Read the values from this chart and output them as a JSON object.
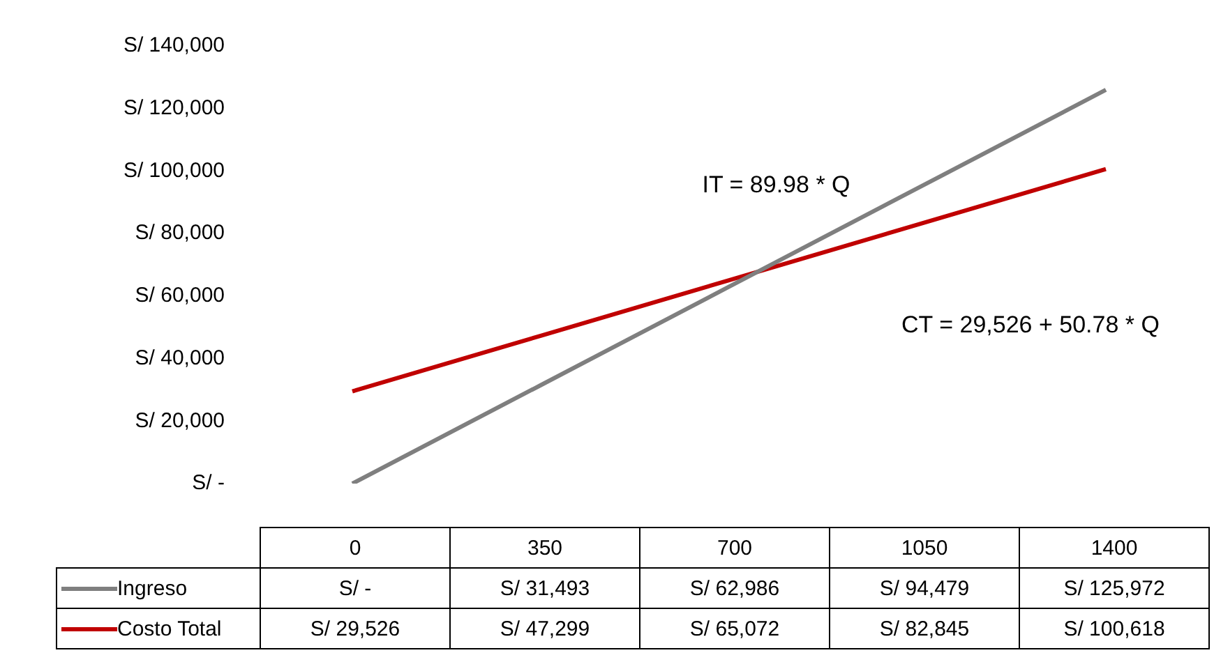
{
  "chart_data": {
    "type": "line",
    "categories": [
      "0",
      "350",
      "700",
      "1050",
      "1400"
    ],
    "series": [
      {
        "name": "Ingreso",
        "color": "#7f7f7f",
        "values": [
          0,
          31493,
          62986,
          94479,
          125972
        ],
        "value_labels": [
          "S/ -",
          "S/ 31,493",
          "S/ 62,986",
          "S/ 94,479",
          "S/ 125,972"
        ]
      },
      {
        "name": "Costo Total",
        "color": "#c00000",
        "values": [
          29526,
          47299,
          65072,
          82845,
          100618
        ],
        "value_labels": [
          "S/ 29,526",
          "S/ 47,299",
          "S/ 65,072",
          "S/ 82,845",
          "S/ 100,618"
        ]
      }
    ],
    "ylim": [
      0,
      140000
    ],
    "yticks": [
      {
        "value": 0,
        "label": "S/ -"
      },
      {
        "value": 20000,
        "label": "S/ 20,000"
      },
      {
        "value": 40000,
        "label": "S/ 40,000"
      },
      {
        "value": 60000,
        "label": "S/ 60,000"
      },
      {
        "value": 80000,
        "label": "S/ 80,000"
      },
      {
        "value": 100000,
        "label": "S/ 100,000"
      },
      {
        "value": 120000,
        "label": "S/ 120,000"
      },
      {
        "value": 140000,
        "label": "S/ 140,000"
      }
    ],
    "annotations": [
      "IT = 89.98 * Q",
      "CT = 29,526 + 50.78 * Q"
    ],
    "legend": "bottom",
    "grid": false,
    "marker": "none",
    "line_style": "solid"
  }
}
